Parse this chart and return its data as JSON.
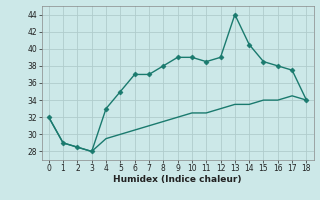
{
  "xlabel": "Humidex (Indice chaleur)",
  "x": [
    0,
    1,
    2,
    3,
    4,
    5,
    6,
    7,
    8,
    9,
    10,
    11,
    12,
    13,
    14,
    15,
    16,
    17,
    18
  ],
  "y_upper": [
    32,
    29,
    28.5,
    28,
    33,
    35,
    37,
    37,
    38,
    39,
    39,
    38.5,
    39,
    44,
    40.5,
    38.5,
    38,
    37.5,
    34
  ],
  "y_lower": [
    32,
    29,
    28.5,
    28,
    29.5,
    30,
    30.5,
    31,
    31.5,
    32,
    32.5,
    32.5,
    33,
    33.5,
    33.5,
    34,
    34,
    34.5,
    34
  ],
  "line_color": "#1a7a6e",
  "bg_color": "#cce8e8",
  "grid_color": "#b0cccc",
  "marker": "D",
  "marker_size": 2.5,
  "ylim": [
    27,
    45
  ],
  "yticks": [
    28,
    30,
    32,
    34,
    36,
    38,
    40,
    42,
    44
  ],
  "xlim": [
    -0.5,
    18.5
  ],
  "xticks": [
    0,
    1,
    2,
    3,
    4,
    5,
    6,
    7,
    8,
    9,
    10,
    11,
    12,
    13,
    14,
    15,
    16,
    17,
    18
  ]
}
